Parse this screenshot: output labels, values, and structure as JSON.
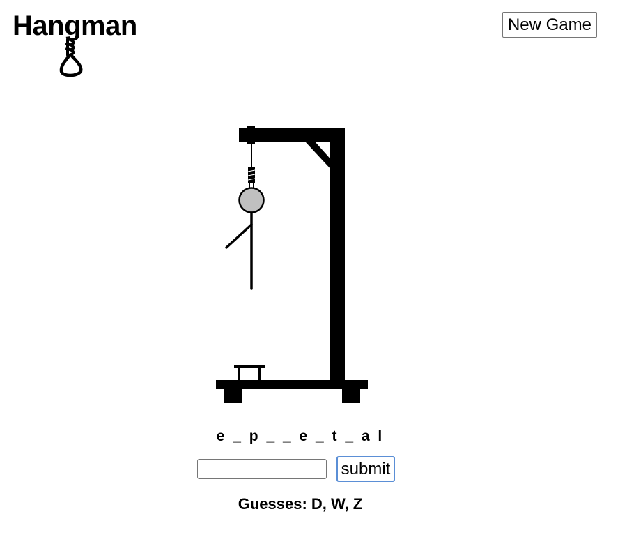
{
  "header": {
    "title": "Hangman",
    "logo_icon": "noose-icon"
  },
  "controls": {
    "new_game_label": "New Game",
    "submit_label": "submit",
    "guess_input_value": "",
    "guess_input_placeholder": ""
  },
  "game": {
    "word_display": "e _ p _ _ e _ t _ a l",
    "guesses_label": "Guesses:",
    "guesses_list": "D, W, Z",
    "wrong_guess_count": 3,
    "body_parts_shown": [
      "head",
      "torso",
      "left-arm"
    ]
  },
  "colors": {
    "head_fill": "#c0c0c0",
    "structure": "#000000",
    "submit_border": "#5b8fd6"
  }
}
